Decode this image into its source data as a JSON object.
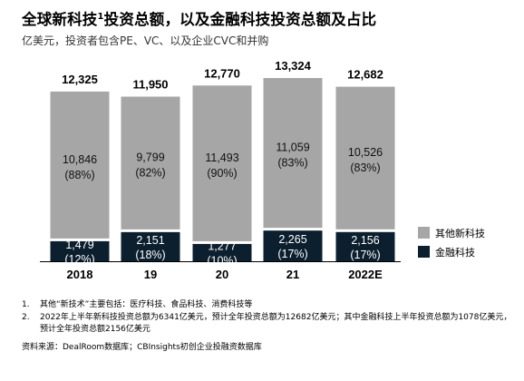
{
  "header": {
    "title": "全球新科技",
    "title_sup": "1",
    "title_rest": "投资总额，以及金融科技投资总额及占比",
    "subtitle": "亿美元，投资者包含PE、VC、以及企业CVC和并购"
  },
  "chart_data": {
    "type": "bar",
    "stacked": true,
    "categories": [
      "2018",
      "19",
      "20",
      "21",
      "2022E"
    ],
    "totals": [
      "12,325",
      "11,950",
      "12,770",
      "13,324",
      "12,682"
    ],
    "series": [
      {
        "name": "金融科技",
        "color": "#0c1f2e",
        "values": [
          1479,
          2151,
          1277,
          2265,
          2156
        ],
        "value_labels": [
          "1,479",
          "2,151",
          "1,277",
          "2,265",
          "2,156"
        ],
        "pct_labels": [
          "(12%)",
          "(18%)",
          "(10%)",
          "(17%)",
          "(17%)"
        ]
      },
      {
        "name": "其他新科技",
        "color": "#a6a6a6",
        "values": [
          10846,
          9799,
          11493,
          11059,
          10526
        ],
        "value_labels": [
          "10,846",
          "9,799",
          "11,493",
          "11,059",
          "10,526"
        ],
        "pct_labels": [
          "(88%)",
          "(82%)",
          "(90%)",
          "(83%)",
          "(83%)"
        ]
      }
    ],
    "legend_position": "right",
    "grid": false
  },
  "notes": [
    {
      "num": "1.",
      "text": "其他“新技术”主要包括：医疗科技、食品科技、消费科技等"
    },
    {
      "num": "2.",
      "text": "2022年上半年新科技投资总额为6341亿美元，预计全年投资总额为12682亿美元；其中金融科技上半年投资总额为1078亿美元，预计全年投资总额2156亿美元"
    }
  ],
  "source": "资料来源：DealRoom数据库；CBInsights初创企业投融资数据库"
}
